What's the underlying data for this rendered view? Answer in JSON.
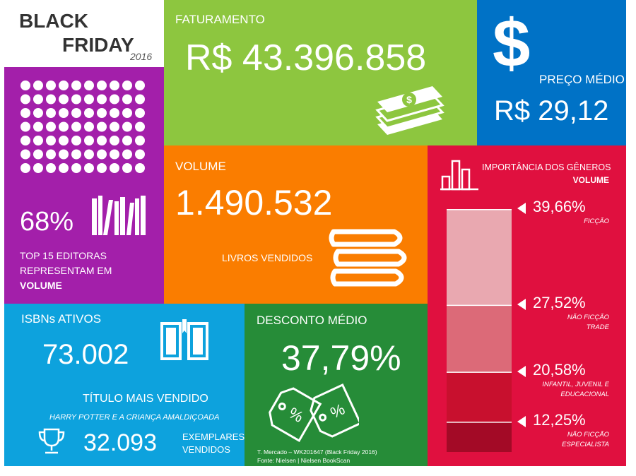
{
  "header": {
    "line1": "BLACK",
    "line2": "FRIDAY",
    "year": "2016"
  },
  "faturamento": {
    "label": "FATURAMENTO",
    "value": "R$ 43.396.858",
    "icon": "cash-icon"
  },
  "preco": {
    "label": "PREÇO MÉDIO",
    "value": "R$ 29,12",
    "icon": "dollar-icon"
  },
  "editoras": {
    "pct": "68%",
    "pct_value": 68,
    "line1": "TOP 15 EDITORAS",
    "line2": "REPRESENTAM EM",
    "line3": "VOLUME",
    "icon": "bookshelf-icon"
  },
  "volume": {
    "label": "VOLUME",
    "value": "1.490.532",
    "sub": "LIVROS VENDIDOS",
    "icon": "book-stack-icon"
  },
  "generos": {
    "title": "IMPORTÂNCIA DOS GÊNEROS",
    "subtitle": "VOLUME",
    "icon": "bar-chart-icon",
    "items": [
      {
        "pct": "39,66%",
        "value": 39.66,
        "label1": "FICÇÃO",
        "label2": "",
        "color": "#e9a8b0"
      },
      {
        "pct": "27,52%",
        "value": 27.52,
        "label1": "NÃO FICÇÃO",
        "label2": "TRADE",
        "color": "#dc6a78"
      },
      {
        "pct": "20,58%",
        "value": 20.58,
        "label1": "INFANTIL, JUVENIL E",
        "label2": "EDUCACIONAL",
        "color": "#c8102e"
      },
      {
        "pct": "12,25%",
        "value": 12.25,
        "label1": "NÃO FICÇÃO",
        "label2": "ESPECIALISTA",
        "color": "#a30a26"
      }
    ]
  },
  "isbn": {
    "label": "ISBNs ATIVOS",
    "value": "73.002",
    "icon": "open-book-icon"
  },
  "titulo": {
    "label": "TÍTULO MAIS VENDIDO",
    "name": "HARRY POTTER E A CRIANÇA AMALDIÇOADA",
    "value": "32.093",
    "unit1": "EXEMPLARES",
    "unit2": "VENDIDOS",
    "icon": "trophy-icon"
  },
  "desconto": {
    "label": "DESCONTO MÉDIO",
    "value": "37,79%",
    "icon": "price-tag-icon"
  },
  "source": {
    "line1": "T. Mercado – WK201647 (Black Friday 2016)",
    "line2": "Fonte: Nielsen | Nielsen BookScan"
  },
  "colors": {
    "green": "#8dc63f",
    "blue": "#0072c6",
    "purple": "#a31faa",
    "orange": "#fa7d00",
    "red": "#e0103f",
    "cyan": "#0da2dd",
    "darkgreen": "#268c38"
  }
}
